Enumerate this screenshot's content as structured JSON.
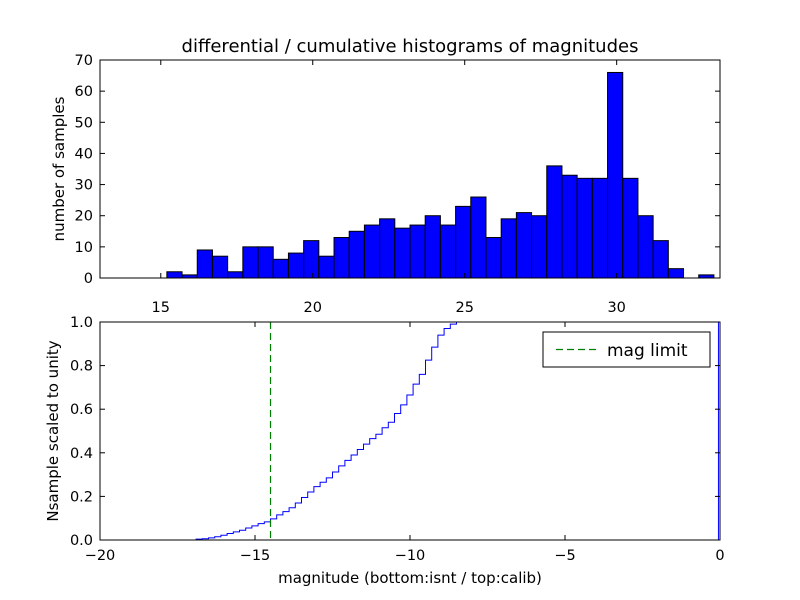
{
  "chart_data": [
    {
      "id": "top",
      "type": "bar",
      "title": "differential / cumulative histograms of magnitudes",
      "ylabel": "number of samples",
      "xlim": [
        13.0,
        33.4
      ],
      "ylim": [
        0,
        70
      ],
      "xticks": [
        15,
        20,
        25,
        30
      ],
      "xtick_labels": [
        "15",
        "20",
        "25",
        "30"
      ],
      "xticks_position": "bottom",
      "yticks": [
        0,
        10,
        20,
        30,
        40,
        50,
        60,
        70
      ],
      "ytick_labels": [
        "0",
        "10",
        "20",
        "30",
        "40",
        "50",
        "60",
        "70"
      ],
      "bin_width": 0.5,
      "bins": [
        {
          "start": 15.2,
          "value": 2
        },
        {
          "start": 15.7,
          "value": 1
        },
        {
          "start": 16.2,
          "value": 9
        },
        {
          "start": 16.7,
          "value": 7
        },
        {
          "start": 17.2,
          "value": 2
        },
        {
          "start": 17.7,
          "value": 10
        },
        {
          "start": 18.2,
          "value": 10
        },
        {
          "start": 18.7,
          "value": 6
        },
        {
          "start": 19.2,
          "value": 8
        },
        {
          "start": 19.7,
          "value": 12
        },
        {
          "start": 20.2,
          "value": 7
        },
        {
          "start": 20.7,
          "value": 13
        },
        {
          "start": 21.2,
          "value": 15
        },
        {
          "start": 21.7,
          "value": 17
        },
        {
          "start": 22.2,
          "value": 19
        },
        {
          "start": 22.7,
          "value": 16
        },
        {
          "start": 23.2,
          "value": 17
        },
        {
          "start": 23.7,
          "value": 20
        },
        {
          "start": 24.2,
          "value": 17
        },
        {
          "start": 24.7,
          "value": 23
        },
        {
          "start": 25.2,
          "value": 26
        },
        {
          "start": 25.7,
          "value": 13
        },
        {
          "start": 26.2,
          "value": 19
        },
        {
          "start": 26.7,
          "value": 21
        },
        {
          "start": 27.2,
          "value": 20
        },
        {
          "start": 27.7,
          "value": 36
        },
        {
          "start": 28.2,
          "value": 33
        },
        {
          "start": 28.7,
          "value": 32
        },
        {
          "start": 29.2,
          "value": 32
        },
        {
          "start": 29.7,
          "value": 66
        },
        {
          "start": 30.2,
          "value": 32
        },
        {
          "start": 30.7,
          "value": 20
        },
        {
          "start": 31.2,
          "value": 12
        },
        {
          "start": 31.7,
          "value": 3
        },
        {
          "start": 32.7,
          "value": 1
        }
      ],
      "bar_color": "#0000ff",
      "edge_color": "#000000"
    },
    {
      "id": "bottom",
      "type": "line",
      "xlabel": "magnitude (bottom:isnt / top:calib)",
      "ylabel": "Nsample scaled to unity",
      "xlim": [
        -20,
        0
      ],
      "ylim": [
        0,
        1
      ],
      "xticks": [
        -20,
        -15,
        -10,
        -5,
        0
      ],
      "xtick_labels": [
        "−20",
        "−15",
        "−10",
        "−5",
        "0"
      ],
      "yticks": [
        0,
        0.2,
        0.4,
        0.6,
        0.8,
        1.0
      ],
      "ytick_labels": [
        "0.0",
        "0.2",
        "0.4",
        "0.6",
        "0.8",
        "1.0"
      ],
      "series": [
        {
          "style": "step",
          "color": "#0000ff",
          "x": [
            -20.0,
            -16.9,
            -16.7,
            -16.5,
            -16.3,
            -16.1,
            -15.9,
            -15.7,
            -15.5,
            -15.3,
            -15.1,
            -14.9,
            -14.7,
            -14.5,
            -14.3,
            -14.1,
            -13.9,
            -13.7,
            -13.5,
            -13.3,
            -13.1,
            -12.9,
            -12.7,
            -12.5,
            -12.3,
            -12.1,
            -11.9,
            -11.7,
            -11.5,
            -11.3,
            -11.1,
            -10.9,
            -10.7,
            -10.5,
            -10.3,
            -10.1,
            -9.9,
            -9.7,
            -9.5,
            -9.3,
            -9.1,
            -8.9,
            -8.7,
            -8.5,
            -0.05
          ],
          "y": [
            0.0,
            0.004,
            0.006,
            0.01,
            0.015,
            0.022,
            0.03,
            0.037,
            0.045,
            0.055,
            0.065,
            0.075,
            0.083,
            0.097,
            0.115,
            0.13,
            0.148,
            0.17,
            0.195,
            0.22,
            0.245,
            0.265,
            0.285,
            0.312,
            0.34,
            0.365,
            0.39,
            0.415,
            0.44,
            0.465,
            0.485,
            0.515,
            0.54,
            0.58,
            0.62,
            0.665,
            0.715,
            0.76,
            0.825,
            0.885,
            0.94,
            0.97,
            0.99,
            1.0,
            1.0
          ]
        },
        {
          "name": "mag limit",
          "style": "dashed-vline",
          "color": "#008000",
          "x": -14.5
        }
      ],
      "legend": {
        "placement": "upper-right",
        "entries": [
          "mag limit"
        ]
      }
    }
  ]
}
